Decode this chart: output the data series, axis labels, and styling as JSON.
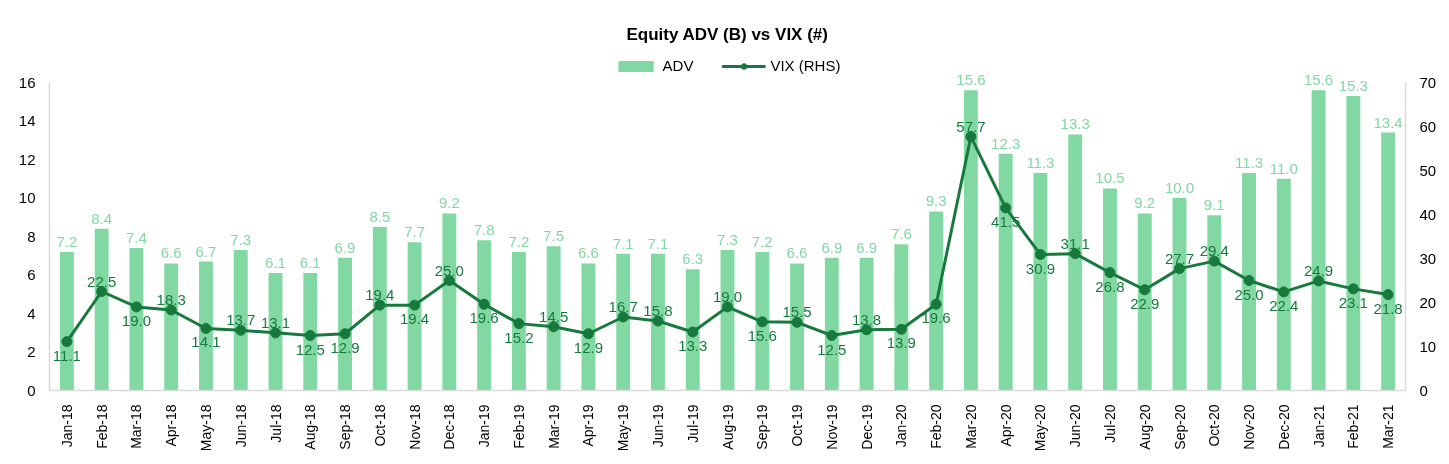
{
  "chart_data": {
    "type": "bar",
    "title": "Equity ADV (B) vs VIX (#)",
    "categories": [
      "Jan-18",
      "Feb-18",
      "Mar-18",
      "Apr-18",
      "May-18",
      "Jun-18",
      "Jul-18",
      "Aug-18",
      "Sep-18",
      "Oct-18",
      "Nov-18",
      "Dec-18",
      "Jan-19",
      "Feb-19",
      "Mar-19",
      "Apr-19",
      "May-19",
      "Jun-19",
      "Jul-19",
      "Aug-19",
      "Sep-19",
      "Oct-19",
      "Nov-19",
      "Dec-19",
      "Jan-20",
      "Feb-20",
      "Mar-20",
      "Apr-20",
      "May-20",
      "Jun-20",
      "Jul-20",
      "Aug-20",
      "Sep-20",
      "Oct-20",
      "Nov-20",
      "Dec-20",
      "Jan-21",
      "Feb-21",
      "Mar-21"
    ],
    "series": [
      {
        "name": "ADV",
        "color": "#82d8a2",
        "values": [
          7.2,
          8.4,
          7.4,
          6.6,
          6.7,
          7.3,
          6.1,
          6.1,
          6.9,
          8.5,
          7.7,
          9.2,
          7.8,
          7.2,
          7.5,
          6.6,
          7.1,
          7.1,
          6.3,
          7.3,
          7.2,
          6.6,
          6.9,
          6.9,
          7.6,
          9.3,
          15.6,
          12.3,
          11.3,
          13.3,
          10.5,
          9.2,
          10.0,
          9.1,
          11.3,
          11.0,
          15.6,
          15.3,
          13.4
        ],
        "value_labels": [
          "7.2",
          "8.4",
          "7.4",
          "6.6",
          "6.7",
          "7.3",
          "6.1",
          "6.1",
          "6.9",
          "8.5",
          "7.7",
          "9.2",
          "7.8",
          "7.2",
          "7.5",
          "6.6",
          "7.1",
          "7.1",
          "6.3",
          "7.3",
          "7.2",
          "6.6",
          "6.9",
          "6.9",
          "7.6",
          "9.3",
          "15.6",
          "12.3",
          "11.3",
          "13.3",
          "10.5",
          "9.2",
          "10.0",
          "9.1",
          "11.3",
          "11.0",
          "15.6",
          "15.3",
          "13.4"
        ]
      },
      {
        "name": "VIX (RHS)",
        "type": "line",
        "axis": "y2",
        "color": "#177a3c",
        "values": [
          11.1,
          22.5,
          19.0,
          18.3,
          14.1,
          13.7,
          13.1,
          12.5,
          12.9,
          19.4,
          19.4,
          25.0,
          19.6,
          15.2,
          14.5,
          12.9,
          16.7,
          15.8,
          13.3,
          19.0,
          15.6,
          15.5,
          12.5,
          13.8,
          13.9,
          19.6,
          57.7,
          41.5,
          30.9,
          31.1,
          26.8,
          22.9,
          27.7,
          29.4,
          25.0,
          22.4,
          24.9,
          23.1,
          21.8
        ],
        "value_labels": [
          "11.1",
          "22.5",
          "19.0",
          "18.3",
          "14.1",
          "13.7",
          "13.1",
          "12.5",
          "12.9",
          "19.4",
          "19.4",
          "25.0",
          "19.6",
          "15.2",
          "14.5",
          "12.9",
          "16.7",
          "15.8",
          "13.3",
          "19.0",
          "15.6",
          "15.5",
          "12.5",
          "13.8",
          "13.9",
          "19.6",
          "57.7",
          "41.5",
          "30.9",
          "31.1",
          "26.8",
          "22.9",
          "27.7",
          "29.4",
          "25.0",
          "22.4",
          "24.9",
          "23.1",
          "21.8"
        ]
      }
    ],
    "ylim": [
      0,
      16
    ],
    "yticks": [
      0,
      2,
      4,
      6,
      8,
      10,
      12,
      14,
      16
    ],
    "y2lim": [
      0,
      70
    ],
    "y2ticks": [
      0,
      10,
      20,
      30,
      40,
      50,
      60,
      70
    ],
    "grid": false,
    "legend": "top",
    "marker": "circle",
    "line_style": "solid"
  }
}
